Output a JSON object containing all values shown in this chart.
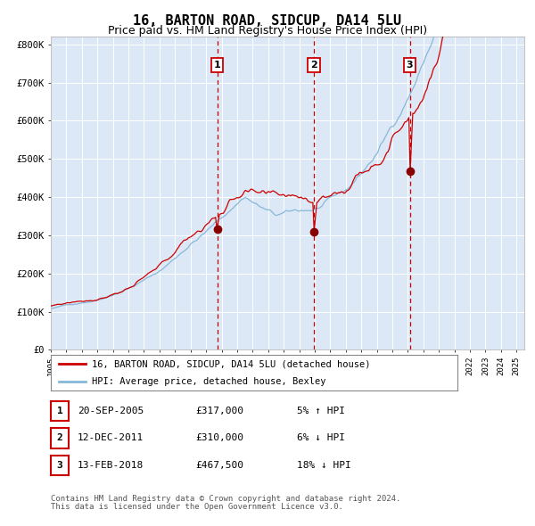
{
  "title": "16, BARTON ROAD, SIDCUP, DA14 5LU",
  "subtitle": "Price paid vs. HM Land Registry's House Price Index (HPI)",
  "title_fontsize": 11,
  "subtitle_fontsize": 9,
  "background_color": "#ffffff",
  "plot_bg_color": "#dce8f5",
  "grid_color": "#ffffff",
  "hpi_line_color": "#88b8d8",
  "price_line_color": "#cc0000",
  "marker_color": "#880000",
  "dashed_line_color": "#cc0000",
  "ylim": [
    0,
    820000
  ],
  "yticks": [
    0,
    100000,
    200000,
    300000,
    400000,
    500000,
    600000,
    700000,
    800000
  ],
  "ytick_labels": [
    "£0",
    "£100K",
    "£200K",
    "£300K",
    "£400K",
    "£500K",
    "£600K",
    "£700K",
    "£800K"
  ],
  "xlim_start": 1995,
  "xlim_end": 2025.5,
  "transactions": [
    {
      "label": "1",
      "date": "20-SEP-2005",
      "price": 317000,
      "price_str": "£317,000",
      "pct": "5%",
      "dir": "↑",
      "x_year": 2005.72
    },
    {
      "label": "2",
      "date": "12-DEC-2011",
      "price": 310000,
      "price_str": "£310,000",
      "pct": "6%",
      "dir": "↓",
      "x_year": 2011.95
    },
    {
      "label": "3",
      "date": "13-FEB-2018",
      "price": 467500,
      "price_str": "£467,500",
      "pct": "18%",
      "dir": "↓",
      "x_year": 2018.12
    }
  ],
  "legend_property": "16, BARTON ROAD, SIDCUP, DA14 5LU (detached house)",
  "legend_hpi": "HPI: Average price, detached house, Bexley",
  "footer1": "Contains HM Land Registry data © Crown copyright and database right 2024.",
  "footer2": "This data is licensed under the Open Government Licence v3.0."
}
